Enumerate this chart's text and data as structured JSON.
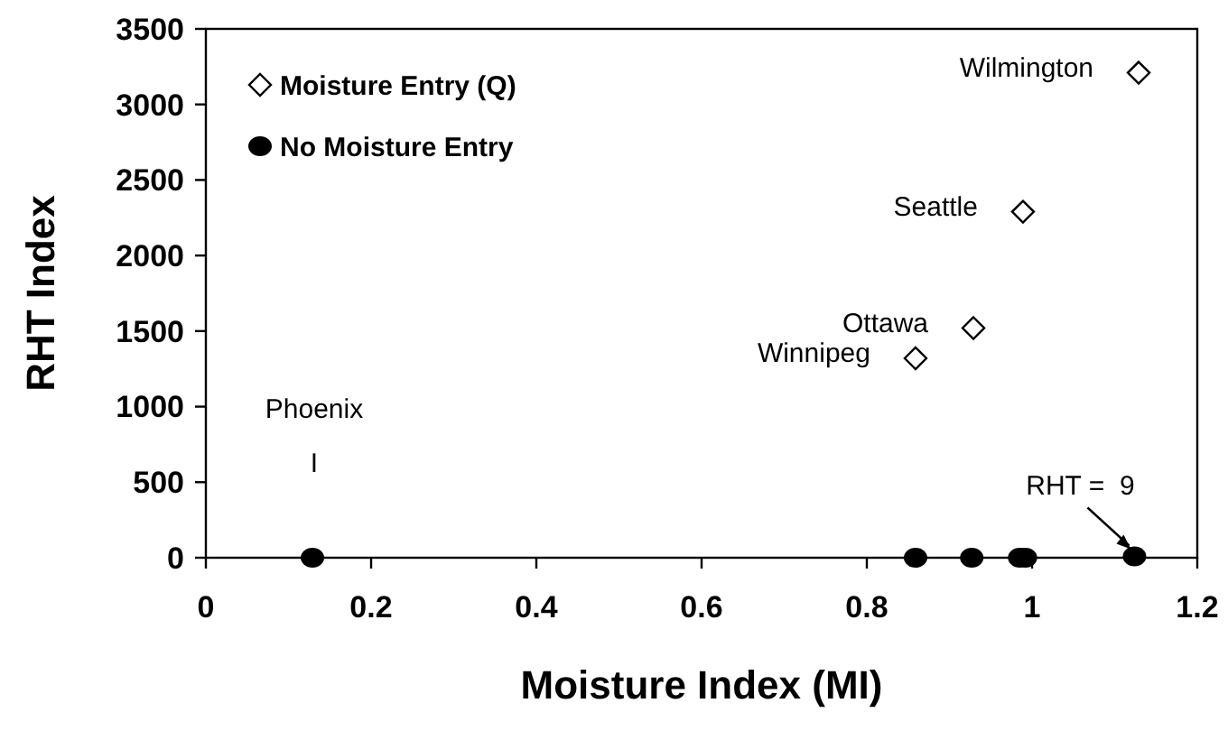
{
  "chart_data": {
    "type": "scatter",
    "xlabel": "Moisture Index (MI)",
    "ylabel": "RHT Index",
    "xlim": [
      0,
      1.2
    ],
    "xticks": [
      0,
      {
        "value": 0.2,
        "label": "0.2"
      },
      {
        "value": 0.4,
        "label": "0.4"
      },
      {
        "value": 0.6,
        "label": "0.6"
      },
      {
        "value": 0.8,
        "label": "0.8"
      },
      1,
      {
        "value": 1.2,
        "label": "1.2"
      }
    ],
    "ylim": [
      0,
      3500
    ],
    "yticks": [
      0,
      500,
      1000,
      1500,
      2000,
      2500,
      3000,
      3500
    ],
    "grid": false,
    "legend": "top left",
    "series": [
      {
        "name": "Moisture Entry (Q)",
        "color": "#000000",
        "marker": "diamond",
        "x": [
          0.859,
          0.929,
          0.989,
          1.129
        ],
        "values": [
          1320,
          1520,
          2290,
          3210
        ]
      },
      {
        "name": "No Moisture Entry",
        "color": "#000000",
        "marker": "circle",
        "x": [
          0.129,
          0.859,
          0.927,
          0.985,
          0.992,
          1.124
        ],
        "values": [
          0,
          0,
          0,
          0,
          0,
          9
        ]
      }
    ],
    "annotations": [
      "Phoenix",
      "I",
      {
        "text": "Winnipeg",
        "x": 0.859,
        "y": 1320
      },
      {
        "text": "Ottawa",
        "x": 0.929,
        "y": 1520
      },
      {
        "text": "Seattle",
        "x": 0.989,
        "y": 2290
      },
      {
        "text": "Wilmington",
        "x": 1.129,
        "y": 3210
      },
      {
        "text": "RHT =  9",
        "x": 1.124,
        "y": 9
      }
    ]
  }
}
